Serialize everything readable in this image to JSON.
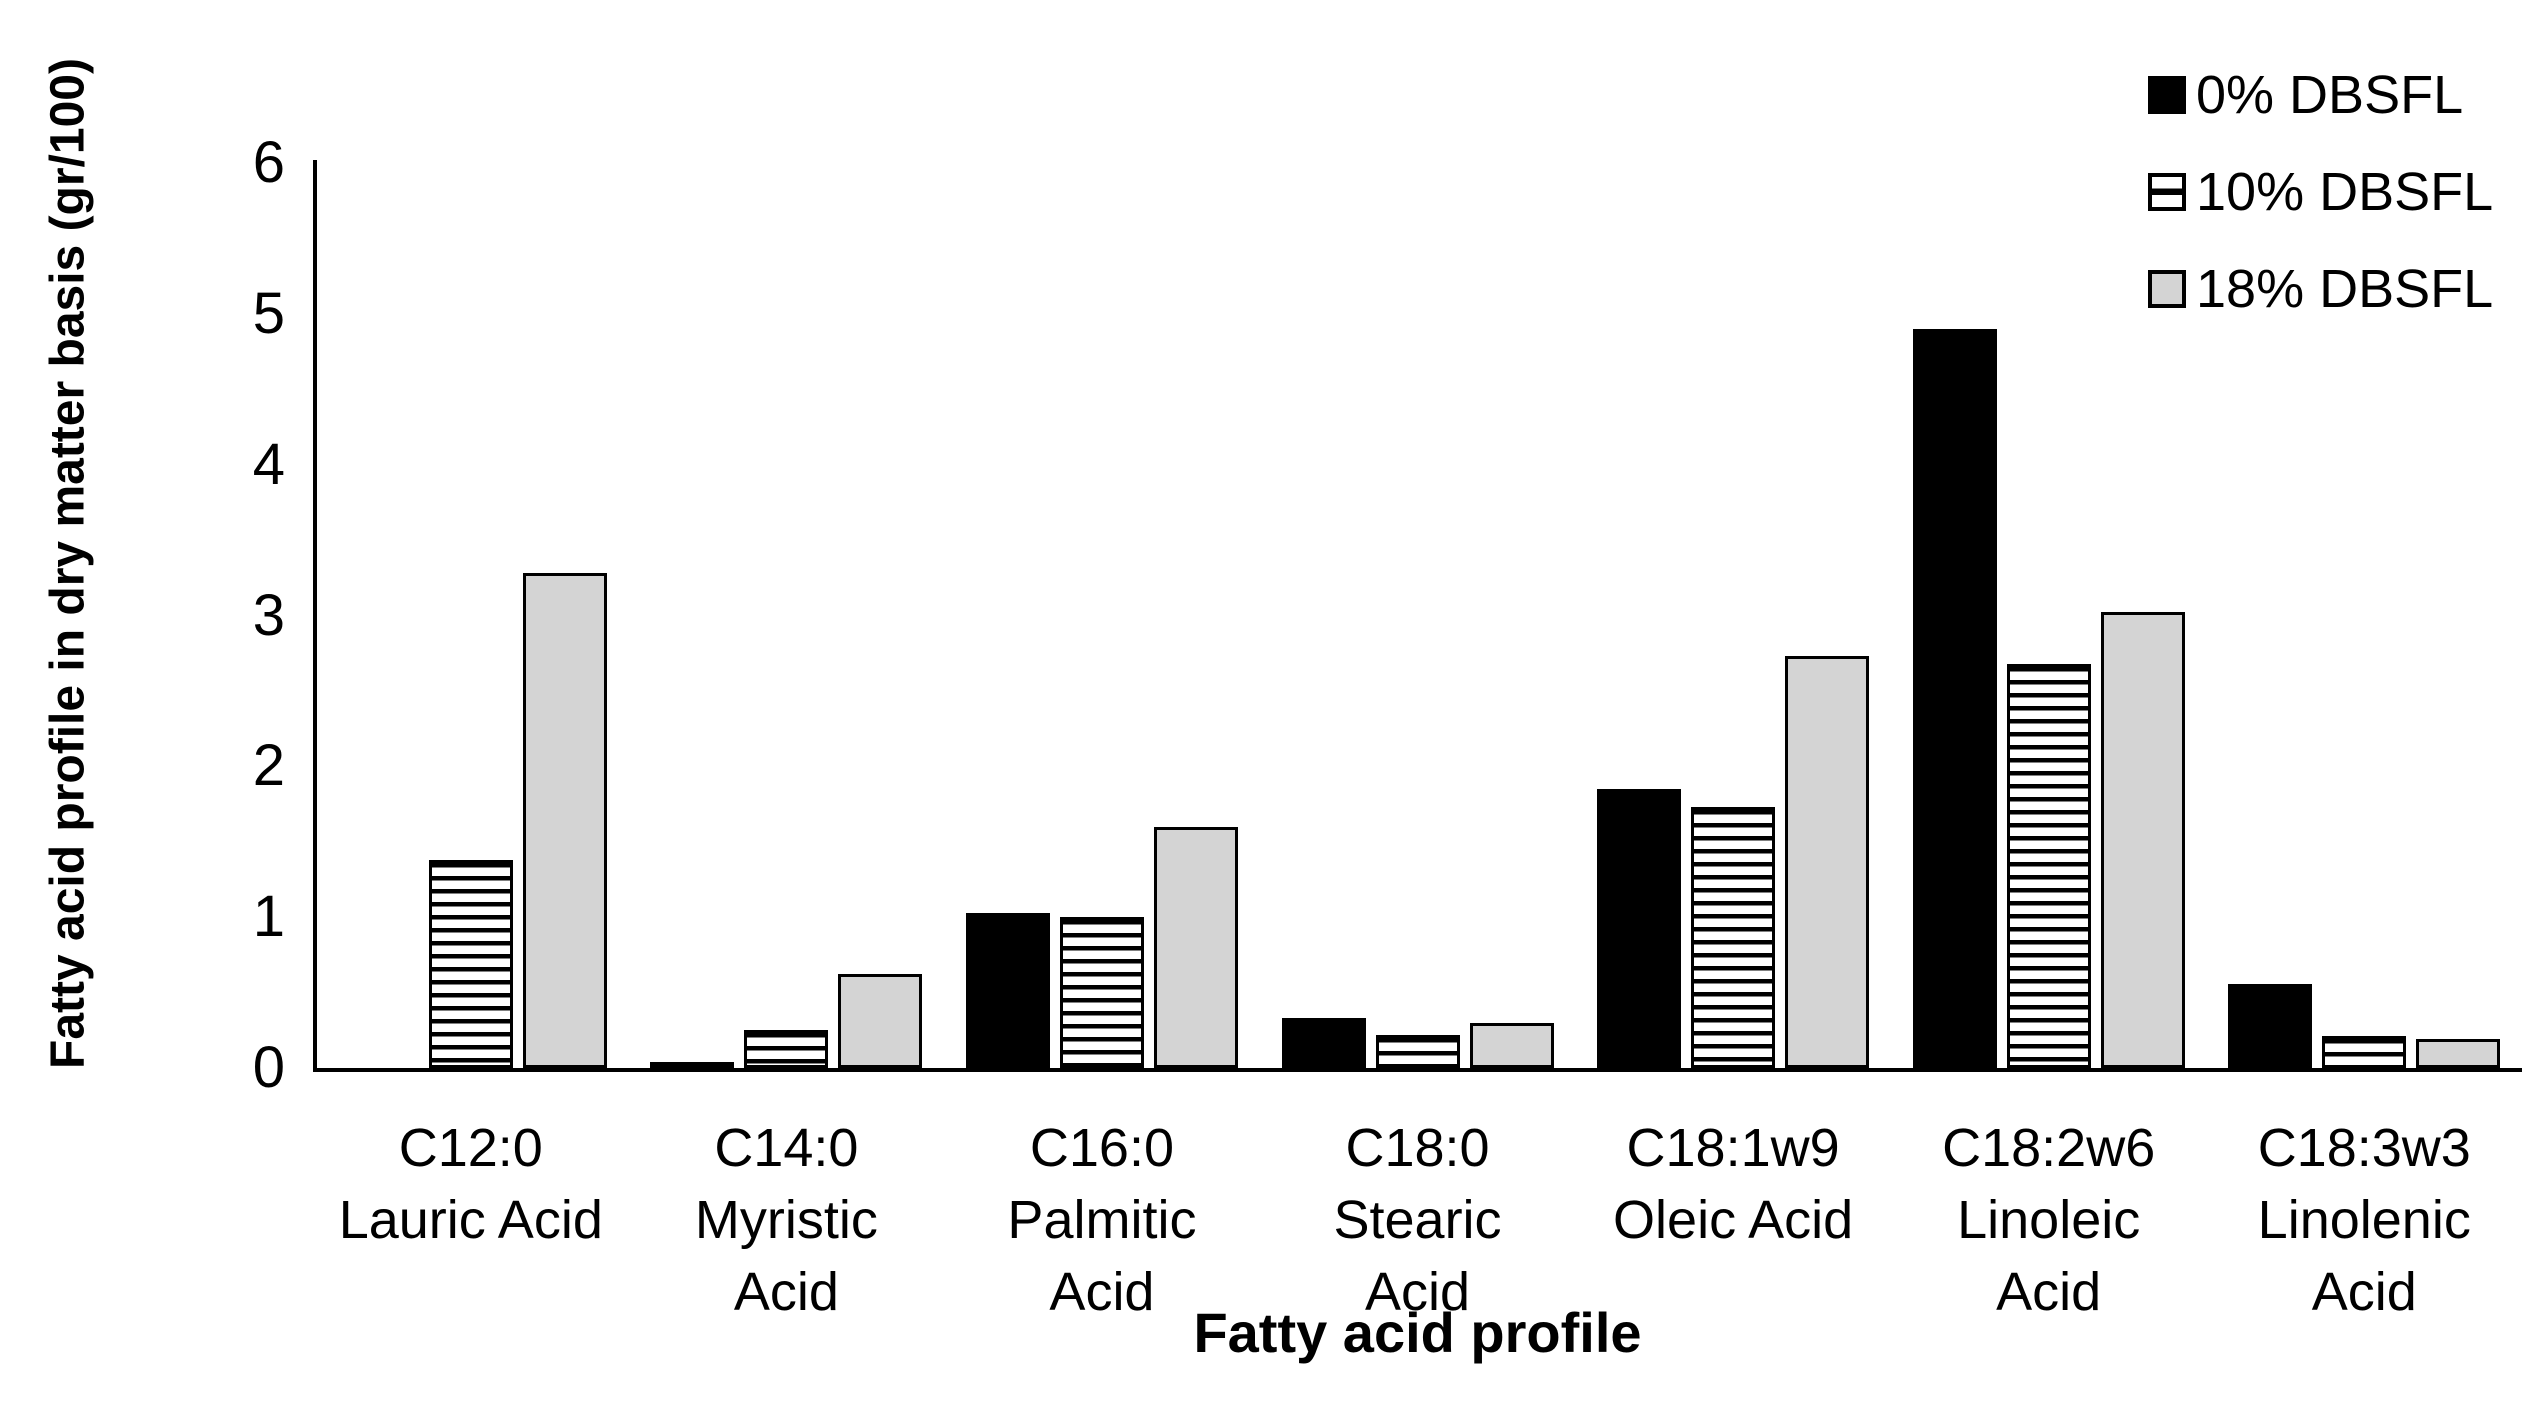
{
  "chart_data": {
    "type": "bar",
    "title": "",
    "xlabel": "Fatty acid profile",
    "ylabel": "Fatty acid profile in dry matter basis (gr/100)",
    "ylim": [
      0,
      6
    ],
    "y_tick_step": 1,
    "y_ticks": [
      "6",
      "5",
      "4",
      "3",
      "2",
      "1",
      "0"
    ],
    "grid": false,
    "legend_position": "top-right",
    "categories": [
      {
        "code": "C12:0",
        "name_lines": [
          "Lauric Acid"
        ]
      },
      {
        "code": "C14:0",
        "name_lines": [
          "Myristic",
          "Acid"
        ]
      },
      {
        "code": "C16:0",
        "name_lines": [
          "Palmitic",
          "Acid"
        ]
      },
      {
        "code": "C18:0",
        "name_lines": [
          "Stearic",
          "Acid"
        ]
      },
      {
        "code": "C18:1w9",
        "name_lines": [
          "Oleic Acid"
        ]
      },
      {
        "code": "C18:2w6",
        "name_lines": [
          "Linoleic",
          "Acid"
        ]
      },
      {
        "code": "C18:3w3",
        "name_lines": [
          "Linolenic",
          "Acid"
        ]
      }
    ],
    "series": [
      {
        "name": "0% DBSFL",
        "pattern": "solid-black",
        "values": [
          0,
          0.03,
          1.03,
          0.33,
          1.85,
          4.9,
          0.56
        ]
      },
      {
        "name": "10% DBSFL",
        "pattern": "horizontal-stripes",
        "values": [
          1.38,
          0.25,
          1.0,
          0.22,
          1.73,
          2.68,
          0.21
        ]
      },
      {
        "name": "18% DBSFL",
        "pattern": "light-gray",
        "values": [
          3.28,
          0.62,
          1.6,
          0.3,
          2.73,
          3.02,
          0.19
        ]
      }
    ],
    "colors": {
      "series_black": "#000000",
      "series_stripe_bg": "#ffffff",
      "series_gray": "#d4d4d4",
      "axis": "#000000",
      "background": "#ffffff"
    }
  }
}
